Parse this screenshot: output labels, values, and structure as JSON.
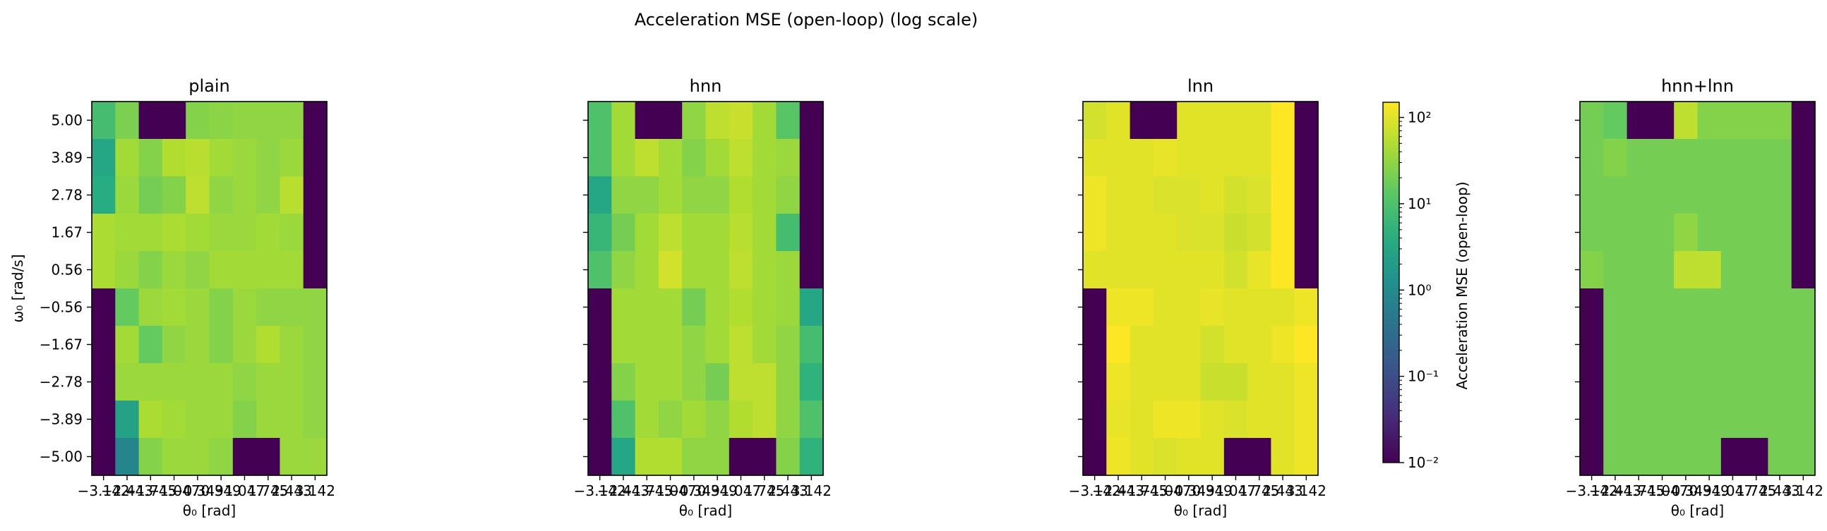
{
  "suptitle": "Acceleration MSE (open-loop)  (log scale)",
  "colorbar": {
    "label": "Acceleration MSE (open-loop)",
    "scale": "log",
    "colormap": "viridis",
    "range": [
      0.01,
      150
    ],
    "ticks": [
      {
        "value": 0.01,
        "label": "10⁻²"
      },
      {
        "value": 0.1,
        "label": "10⁻¹"
      },
      {
        "value": 1,
        "label": "10⁰"
      },
      {
        "value": 10,
        "label": "10¹"
      },
      {
        "value": 100,
        "label": "10²"
      }
    ]
  },
  "axes": {
    "xlabel": "θ₀ [rad]",
    "ylabel": "ω₀ [rad/s]",
    "xtick_labels": [
      "−3.142",
      "−2.443",
      "−1.745",
      "−1.047",
      "−0.349",
      "0.349",
      "1.047",
      "1.745",
      "2.443",
      "3.142"
    ],
    "ytick_labels": [
      "5.00",
      "3.89",
      "2.78",
      "1.67",
      "0.56",
      "−0.56",
      "−1.67",
      "−2.78",
      "−3.89",
      "−5.00"
    ]
  },
  "chart_data": {
    "type": "heatmap",
    "x": [
      -3.142,
      -2.443,
      -1.745,
      -1.047,
      -0.349,
      0.349,
      1.047,
      1.745,
      2.443,
      3.142
    ],
    "y": [
      5.0,
      3.89,
      2.78,
      1.67,
      0.56,
      -0.56,
      -1.67,
      -2.78,
      -3.89,
      -5.0
    ],
    "xlabel": "θ₀ [rad]",
    "ylabel": "ω₀ [rad/s]",
    "color_scale": "log",
    "vmin": 0.01,
    "vmax": 150,
    "panels": [
      {
        "title": "plain",
        "values": [
          [
            8,
            22,
            0.01,
            0.01,
            25,
            28,
            30,
            30,
            30,
            0.01
          ],
          [
            3,
            40,
            25,
            50,
            55,
            40,
            35,
            30,
            35,
            0.01
          ],
          [
            4,
            35,
            20,
            25,
            60,
            30,
            35,
            30,
            55,
            0.01
          ],
          [
            45,
            40,
            40,
            45,
            40,
            35,
            35,
            40,
            35,
            0.01
          ],
          [
            45,
            35,
            25,
            35,
            30,
            40,
            40,
            40,
            40,
            0.01
          ],
          [
            0.01,
            15,
            35,
            40,
            35,
            25,
            35,
            30,
            30,
            30
          ],
          [
            0.01,
            40,
            15,
            30,
            35,
            25,
            35,
            50,
            35,
            30
          ],
          [
            0.01,
            35,
            35,
            35,
            35,
            35,
            30,
            35,
            35,
            30
          ],
          [
            0.01,
            2.5,
            45,
            40,
            35,
            35,
            25,
            35,
            35,
            30
          ],
          [
            0.01,
            0.8,
            25,
            35,
            35,
            30,
            0.01,
            0.01,
            35,
            35
          ]
        ]
      },
      {
        "title": "hnn",
        "values": [
          [
            10,
            40,
            0.01,
            0.01,
            30,
            60,
            70,
            40,
            12,
            0.01
          ],
          [
            10,
            40,
            60,
            40,
            25,
            40,
            60,
            40,
            35,
            0.01
          ],
          [
            3,
            30,
            30,
            40,
            30,
            30,
            50,
            40,
            30,
            0.01
          ],
          [
            6,
            20,
            40,
            60,
            40,
            40,
            55,
            40,
            8,
            0.01
          ],
          [
            10,
            30,
            40,
            80,
            40,
            40,
            60,
            40,
            35,
            0.01
          ],
          [
            0.01,
            40,
            40,
            40,
            20,
            40,
            50,
            40,
            35,
            3
          ],
          [
            0.01,
            40,
            40,
            40,
            30,
            40,
            60,
            40,
            30,
            8
          ],
          [
            0.01,
            25,
            40,
            40,
            30,
            20,
            60,
            60,
            30,
            5
          ],
          [
            0.01,
            10,
            40,
            30,
            40,
            30,
            50,
            60,
            30,
            10
          ],
          [
            0.01,
            3,
            50,
            50,
            30,
            30,
            0.01,
            0.01,
            25,
            5
          ]
        ]
      },
      {
        "title": "lnn",
        "values": [
          [
            80,
            100,
            0.01,
            0.01,
            100,
            100,
            100,
            100,
            150,
            0.01
          ],
          [
            100,
            100,
            100,
            110,
            100,
            100,
            100,
            100,
            150,
            0.01
          ],
          [
            120,
            100,
            100,
            90,
            90,
            100,
            80,
            90,
            150,
            0.01
          ],
          [
            120,
            100,
            100,
            100,
            90,
            90,
            70,
            80,
            150,
            0.01
          ],
          [
            100,
            100,
            100,
            100,
            100,
            100,
            80,
            110,
            150,
            0.01
          ],
          [
            0.01,
            120,
            120,
            100,
            100,
            110,
            100,
            100,
            100,
            120
          ],
          [
            0.01,
            150,
            100,
            100,
            100,
            80,
            100,
            100,
            120,
            150
          ],
          [
            0.01,
            120,
            100,
            100,
            100,
            70,
            70,
            100,
            100,
            120
          ],
          [
            0.01,
            110,
            100,
            120,
            120,
            100,
            90,
            100,
            100,
            120
          ],
          [
            0.01,
            120,
            100,
            90,
            100,
            100,
            0.01,
            0.01,
            100,
            120
          ]
        ]
      },
      {
        "title": "hnn+lnn",
        "values": [
          [
            20,
            15,
            0.01,
            0.01,
            60,
            25,
            25,
            25,
            25,
            0.01
          ],
          [
            20,
            25,
            20,
            20,
            20,
            20,
            20,
            20,
            20,
            0.01
          ],
          [
            20,
            20,
            20,
            20,
            20,
            20,
            20,
            20,
            20,
            0.01
          ],
          [
            20,
            20,
            20,
            20,
            30,
            20,
            20,
            20,
            20,
            0.01
          ],
          [
            25,
            20,
            20,
            20,
            60,
            60,
            20,
            20,
            20,
            0.01
          ],
          [
            0.01,
            20,
            20,
            20,
            20,
            20,
            20,
            20,
            20,
            20
          ],
          [
            0.01,
            20,
            20,
            20,
            20,
            20,
            20,
            20,
            20,
            20
          ],
          [
            0.01,
            20,
            20,
            20,
            20,
            20,
            20,
            20,
            20,
            20
          ],
          [
            0.01,
            20,
            20,
            20,
            20,
            20,
            20,
            20,
            20,
            20
          ],
          [
            0.01,
            20,
            20,
            20,
            20,
            20,
            0.01,
            0.01,
            20,
            20
          ]
        ]
      }
    ]
  }
}
